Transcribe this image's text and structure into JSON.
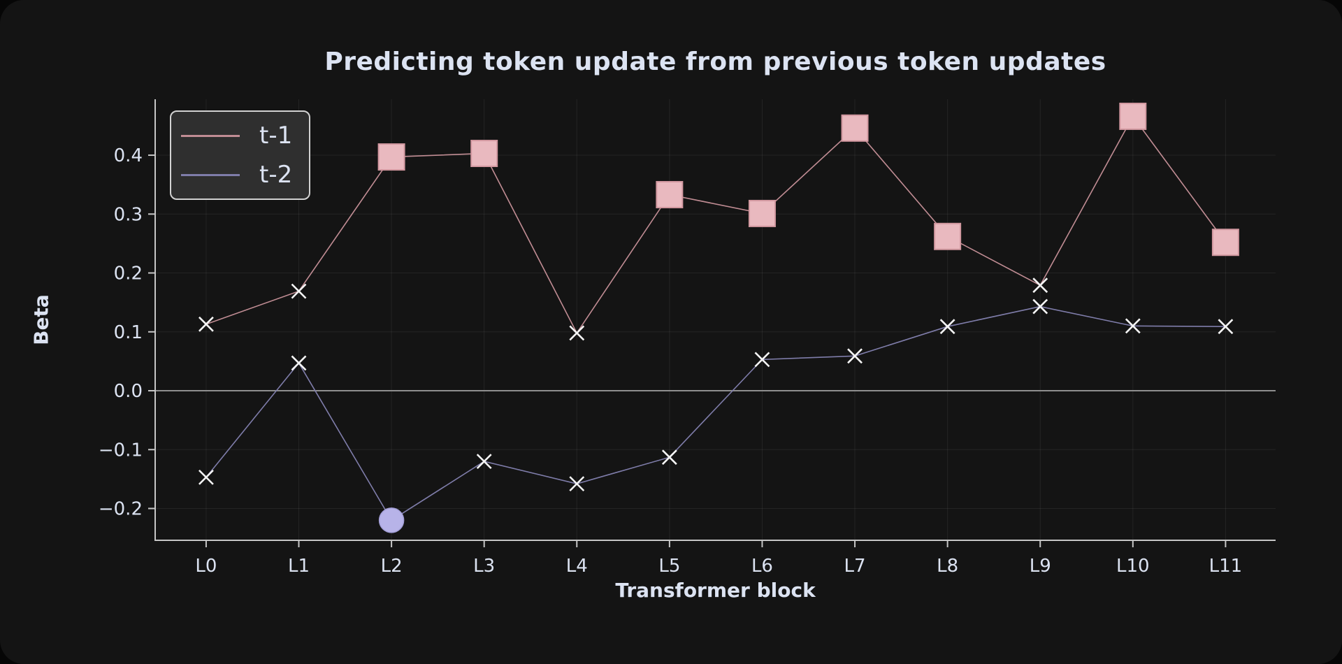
{
  "chart_data": {
    "type": "line",
    "title": "Predicting token update from previous token updates",
    "xlabel": "Transformer block",
    "ylabel": "Beta",
    "categories": [
      "L0",
      "L1",
      "L2",
      "L3",
      "L4",
      "L5",
      "L6",
      "L7",
      "L8",
      "L9",
      "L10",
      "L11"
    ],
    "yticks": [
      0.4,
      0.3,
      0.2,
      0.1,
      0.0,
      -0.1,
      -0.2
    ],
    "ylim": [
      -0.254,
      0.495
    ],
    "xlim": [
      -0.55,
      11.54
    ],
    "grid": true,
    "zero_line": true,
    "legend_position": "upper-left",
    "series": [
      {
        "name": "t-1",
        "color": "#c18d94",
        "marker_fill": "#e9b9bf",
        "marker_edge": "#d298a0",
        "values": [
          0.113,
          0.169,
          0.397,
          0.403,
          0.098,
          0.333,
          0.301,
          0.446,
          0.262,
          0.179,
          0.466,
          0.252
        ],
        "markers": [
          "x",
          "x",
          "square",
          "square",
          "x",
          "square",
          "square",
          "square",
          "square",
          "x",
          "square",
          "square"
        ]
      },
      {
        "name": "t-2",
        "color": "#7f7daa",
        "marker_fill": "#b7b3e8",
        "marker_edge": "#a39fd8",
        "values": [
          -0.147,
          0.047,
          -0.22,
          -0.12,
          -0.158,
          -0.113,
          0.053,
          0.059,
          0.109,
          0.143,
          0.11,
          0.109
        ],
        "markers": [
          "x",
          "x",
          "circle",
          "x",
          "x",
          "x",
          "x",
          "x",
          "x",
          "x",
          "x",
          "x"
        ]
      }
    ],
    "colors": {
      "outer_background": "#060606",
      "panel_background": "#141414",
      "text": "#dce3f2",
      "spine": "#c6c6c6",
      "grid": "rgba(255,255,255,0.07)",
      "zero_line": "#8f8f8f",
      "x_marker": "#f5f5f5",
      "legend_background": "#2f2f2f",
      "legend_border": "#d2d2d2"
    }
  }
}
